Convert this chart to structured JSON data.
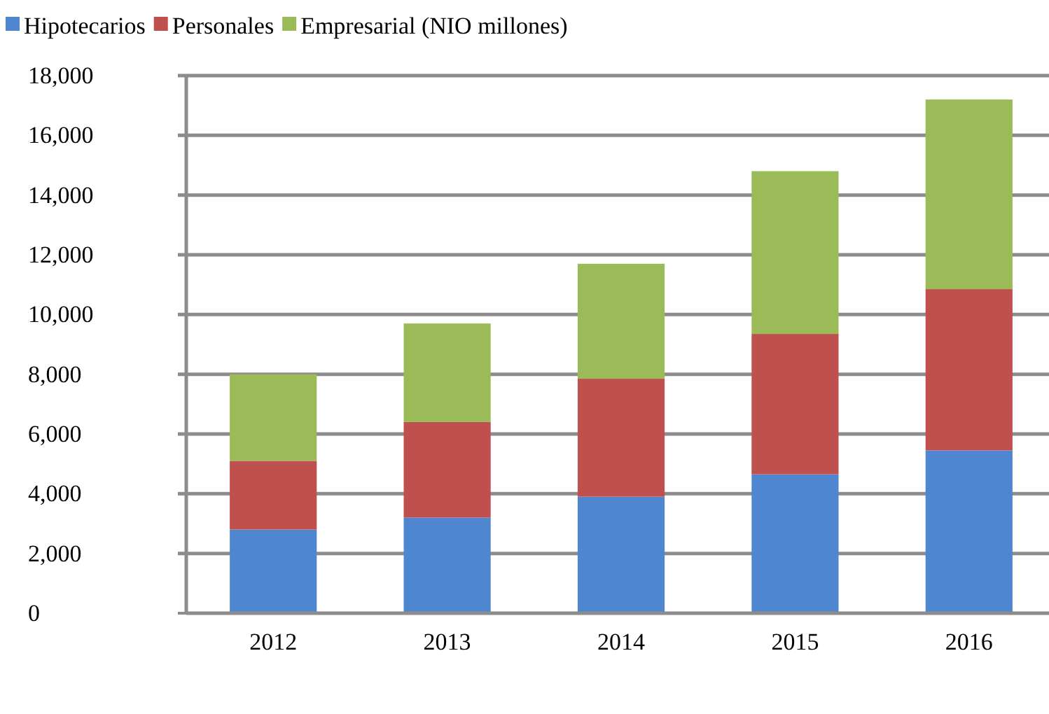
{
  "chart_data": {
    "type": "bar",
    "stacked": true,
    "categories": [
      "2012",
      "2013",
      "2014",
      "2015",
      "2016"
    ],
    "series": [
      {
        "name": "Hipotecarios",
        "color": "#4f86d0",
        "values": [
          2800,
          3200,
          3900,
          4650,
          5450
        ]
      },
      {
        "name": "Personales",
        "color": "#c0504d",
        "values": [
          2300,
          3200,
          3950,
          4700,
          5400
        ]
      },
      {
        "name": "Empresarial (NIO millones)",
        "color": "#9bbb59",
        "values": [
          2900,
          3300,
          3850,
          5450,
          6350
        ]
      }
    ],
    "ylim": [
      0,
      18000
    ],
    "yticks": [
      0,
      {
        "value": 2000,
        "label": "2,000"
      },
      {
        "value": 4000,
        "label": "4,000"
      },
      {
        "value": 6000,
        "label": "6,000"
      },
      {
        "value": 8000,
        "label": "8,000"
      },
      {
        "value": 10000,
        "label": "10,000"
      },
      {
        "value": 12000,
        "label": "12,000"
      },
      {
        "value": 14000,
        "label": "14,000"
      },
      {
        "value": 16000,
        "label": "16,000"
      },
      {
        "value": 18000,
        "label": "18,000"
      }
    ],
    "grid": "y",
    "legend": "top left"
  }
}
